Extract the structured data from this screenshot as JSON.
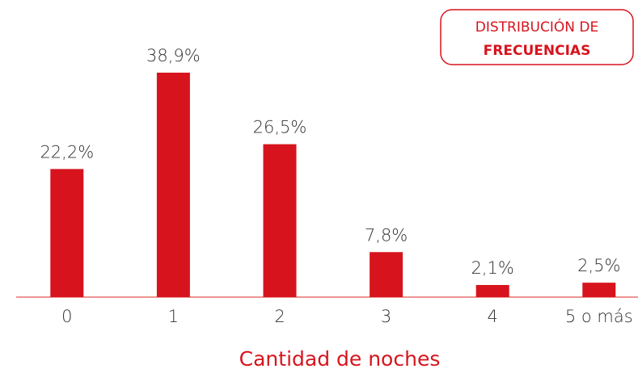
{
  "chart_data": {
    "type": "bar",
    "title": [
      "DISTRIBUCIÓN DE",
      "FRECUENCIAS"
    ],
    "x_label": "Cantidad de noches",
    "categories": [
      "0",
      "1",
      "2",
      "3",
      "4",
      "5 o más"
    ],
    "values": [
      22.2,
      38.9,
      26.5,
      7.8,
      2.1,
      2.5
    ],
    "value_labels": [
      "22,2%",
      "38,9%",
      "26,5%",
      "7,8%",
      "2,1%",
      "2,5%"
    ],
    "color": "#d7141d"
  }
}
